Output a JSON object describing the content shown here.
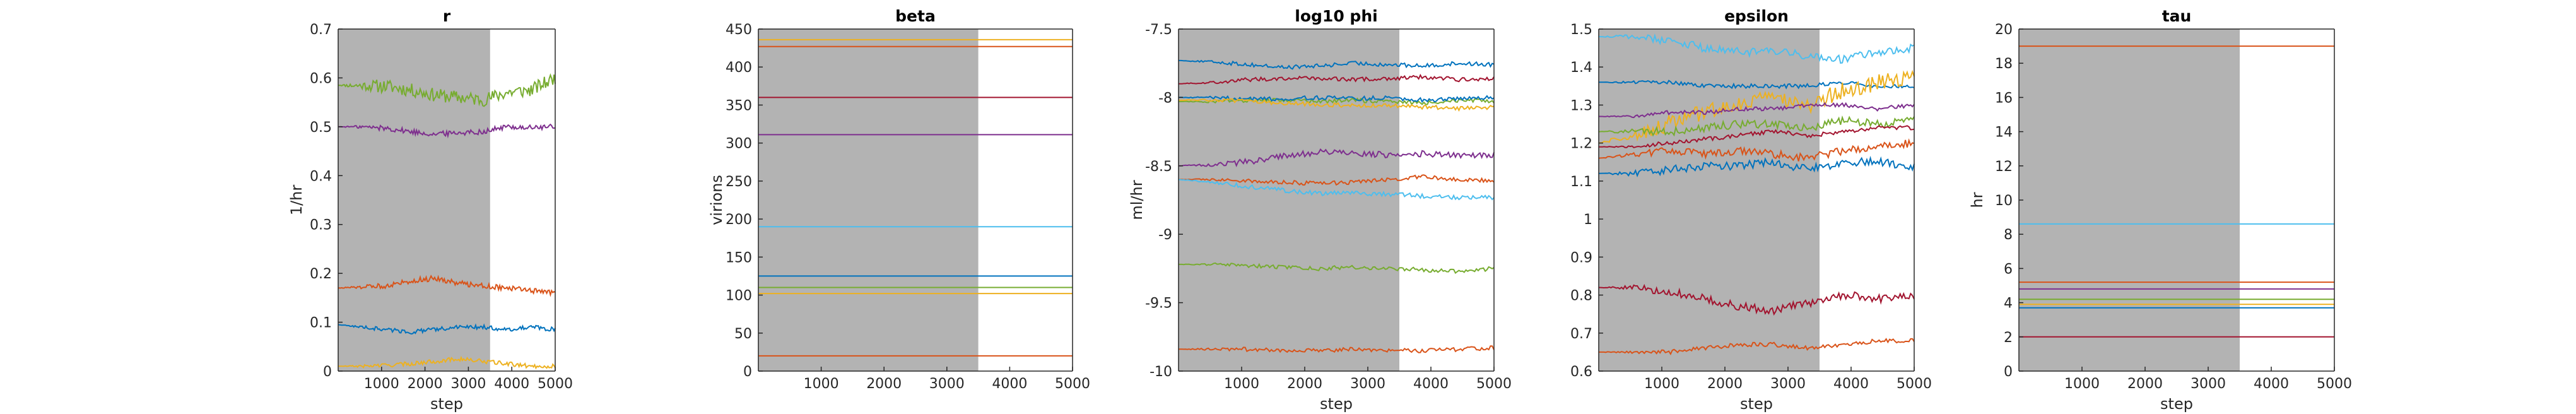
{
  "figure": {
    "background": "#ffffff",
    "shade_color": "#b3b3b3",
    "axis_color": "#262626"
  },
  "chart_data": [
    {
      "type": "line",
      "title": "r",
      "xlabel": "step",
      "ylabel": "1/hr",
      "xlim": [
        0,
        5000
      ],
      "ylim": [
        0,
        0.7
      ],
      "shaded_until": 3500,
      "xticks": [
        1000,
        2000,
        3000,
        4000,
        5000
      ],
      "xtick_labels": [
        "1000",
        "2000",
        "3000",
        "4000",
        "5000"
      ],
      "yticks": [
        0,
        0.1,
        0.2,
        0.3,
        0.4,
        0.5,
        0.6,
        0.7
      ],
      "ytick_labels": [
        "0",
        "0.1",
        "0.2",
        "0.3",
        "0.4",
        "0.5",
        "0.6",
        "0.7"
      ],
      "series": [
        {
          "color": "#77ac30",
          "values": [
            0.585,
            0.584,
            0.583,
            0.575,
            0.565,
            0.56,
            0.555,
            0.57,
            0.575,
            0.6
          ]
        },
        {
          "color": "#7e2f8e",
          "values": [
            0.5,
            0.5,
            0.497,
            0.49,
            0.485,
            0.488,
            0.49,
            0.5,
            0.498,
            0.5
          ]
        },
        {
          "color": "#d95319",
          "values": [
            0.17,
            0.172,
            0.175,
            0.185,
            0.19,
            0.18,
            0.175,
            0.17,
            0.165,
            0.16
          ]
        },
        {
          "color": "#0072bd",
          "values": [
            0.095,
            0.09,
            0.085,
            0.08,
            0.085,
            0.09,
            0.09,
            0.085,
            0.09,
            0.085
          ]
        },
        {
          "color": "#edb120",
          "values": [
            0.01,
            0.01,
            0.012,
            0.015,
            0.02,
            0.025,
            0.02,
            0.015,
            0.01,
            0.01
          ]
        }
      ]
    },
    {
      "type": "line",
      "title": "beta",
      "xlabel": "",
      "ylabel": "virions",
      "xlim": [
        0,
        5000
      ],
      "ylim": [
        0,
        450
      ],
      "shaded_until": 3500,
      "xticks": [
        1000,
        2000,
        3000,
        4000,
        5000
      ],
      "xtick_labels": [
        "1000",
        "2000",
        "3000",
        "4000",
        "5000"
      ],
      "yticks": [
        0,
        50,
        100,
        150,
        200,
        250,
        300,
        350,
        400,
        450
      ],
      "ytick_labels": [
        "0",
        "50",
        "100",
        "150",
        "200",
        "250",
        "300",
        "350",
        "400",
        "450"
      ],
      "series": [
        {
          "color": "#edb120",
          "values": [
            436,
            436,
            436,
            436,
            436,
            436,
            436,
            436,
            436,
            436
          ]
        },
        {
          "color": "#d95319",
          "values": [
            427,
            427,
            427,
            427,
            427,
            427,
            427,
            427,
            427,
            427
          ]
        },
        {
          "color": "#a2142f",
          "values": [
            360,
            360,
            360,
            360,
            360,
            360,
            360,
            360,
            360,
            360
          ]
        },
        {
          "color": "#7e2f8e",
          "values": [
            311,
            311,
            311,
            311,
            311,
            311,
            311,
            311,
            311,
            311
          ]
        },
        {
          "color": "#4dbeee",
          "values": [
            190,
            190,
            190,
            190,
            190,
            190,
            190,
            190,
            190,
            190
          ]
        },
        {
          "color": "#0072bd",
          "values": [
            125,
            125,
            125,
            125,
            125,
            125,
            125,
            125,
            125,
            125
          ]
        },
        {
          "color": "#77ac30",
          "values": [
            110,
            110,
            110,
            110,
            110,
            110,
            110,
            110,
            110,
            110
          ]
        },
        {
          "color": "#edb120",
          "values": [
            102,
            102,
            102,
            102,
            102,
            102,
            102,
            102,
            102,
            102
          ]
        },
        {
          "color": "#d95319",
          "values": [
            20,
            20,
            20,
            20,
            20,
            20,
            20,
            20,
            20,
            20
          ]
        }
      ]
    },
    {
      "type": "line",
      "title": "log10 phi",
      "xlabel": "step",
      "ylabel": "ml/hr",
      "xlim": [
        0,
        5000
      ],
      "ylim": [
        -10,
        -7.5
      ],
      "shaded_until": 3500,
      "xticks": [
        1000,
        2000,
        3000,
        4000,
        5000
      ],
      "xtick_labels": [
        "1000",
        "2000",
        "3000",
        "4000",
        "5000"
      ],
      "yticks": [
        -10,
        -9.5,
        -9,
        -8.5,
        -8,
        -7.5
      ],
      "ytick_labels": [
        "-10",
        "-9.5",
        "-9",
        "-8.5",
        "-8",
        "-7.5"
      ],
      "series": [
        {
          "color": "#0072bd",
          "values": [
            -7.73,
            -7.74,
            -7.76,
            -7.78,
            -7.77,
            -7.75,
            -7.76,
            -7.77,
            -7.75,
            -7.76
          ]
        },
        {
          "color": "#a2142f",
          "values": [
            -7.9,
            -7.89,
            -7.87,
            -7.86,
            -7.86,
            -7.87,
            -7.86,
            -7.85,
            -7.87,
            -7.86
          ]
        },
        {
          "color": "#77ac30",
          "values": [
            -8.03,
            -8.03,
            -8.02,
            -8.02,
            -8.03,
            -8.02,
            -8.03,
            -8.04,
            -8.02,
            -8.03
          ]
        },
        {
          "color": "#0072bd",
          "values": [
            -8.0,
            -8.0,
            -8.01,
            -8.01,
            -8.0,
            -8.01,
            -8.0,
            -8.02,
            -8.01,
            -8.0
          ]
        },
        {
          "color": "#edb120",
          "values": [
            -8.02,
            -8.02,
            -8.03,
            -8.04,
            -8.05,
            -8.06,
            -8.06,
            -8.07,
            -8.08,
            -8.07
          ]
        },
        {
          "color": "#7e2f8e",
          "values": [
            -8.5,
            -8.49,
            -8.47,
            -8.43,
            -8.4,
            -8.41,
            -8.42,
            -8.41,
            -8.42,
            -8.42
          ]
        },
        {
          "color": "#d95319",
          "values": [
            -8.6,
            -8.6,
            -8.61,
            -8.62,
            -8.63,
            -8.62,
            -8.6,
            -8.58,
            -8.6,
            -8.61
          ]
        },
        {
          "color": "#4dbeee",
          "values": [
            -8.6,
            -8.62,
            -8.65,
            -8.68,
            -8.7,
            -8.7,
            -8.71,
            -8.72,
            -8.73,
            -8.73
          ]
        },
        {
          "color": "#77ac30",
          "values": [
            -9.22,
            -9.22,
            -9.23,
            -9.24,
            -9.25,
            -9.24,
            -9.25,
            -9.26,
            -9.27,
            -9.25
          ]
        },
        {
          "color": "#d95319",
          "values": [
            -9.84,
            -9.84,
            -9.84,
            -9.85,
            -9.85,
            -9.84,
            -9.85,
            -9.85,
            -9.84,
            -9.83
          ]
        }
      ]
    },
    {
      "type": "line",
      "title": "epsilon",
      "xlabel": "step",
      "ylabel": "",
      "xlim": [
        0,
        5000
      ],
      "ylim": [
        0.6,
        1.5
      ],
      "shaded_until": 3500,
      "xticks": [
        1000,
        2000,
        3000,
        4000,
        5000
      ],
      "xtick_labels": [
        "1000",
        "2000",
        "3000",
        "4000",
        "5000"
      ],
      "yticks": [
        0.6,
        0.7,
        0.8,
        0.9,
        1,
        1.1,
        1.2,
        1.3,
        1.4,
        1.5
      ],
      "ytick_labels": [
        "0.6",
        "0.7",
        "0.8",
        "0.9",
        "1",
        "1.1",
        "1.2",
        "1.3",
        "1.4",
        "1.5"
      ],
      "series": [
        {
          "color": "#4dbeee",
          "values": [
            1.48,
            1.48,
            1.47,
            1.45,
            1.44,
            1.44,
            1.43,
            1.42,
            1.44,
            1.45
          ]
        },
        {
          "color": "#0072bd",
          "values": [
            1.36,
            1.36,
            1.36,
            1.35,
            1.35,
            1.35,
            1.35,
            1.36,
            1.35,
            1.35
          ]
        },
        {
          "color": "#edb120",
          "values": [
            1.2,
            1.22,
            1.25,
            1.28,
            1.3,
            1.32,
            1.3,
            1.34,
            1.36,
            1.38
          ]
        },
        {
          "color": "#7e2f8e",
          "values": [
            1.27,
            1.27,
            1.28,
            1.28,
            1.29,
            1.29,
            1.3,
            1.3,
            1.29,
            1.3
          ]
        },
        {
          "color": "#77ac30",
          "values": [
            1.23,
            1.23,
            1.23,
            1.24,
            1.25,
            1.25,
            1.24,
            1.26,
            1.25,
            1.26
          ]
        },
        {
          "color": "#a2142f",
          "values": [
            1.19,
            1.19,
            1.2,
            1.21,
            1.22,
            1.23,
            1.22,
            1.23,
            1.24,
            1.24
          ]
        },
        {
          "color": "#d95319",
          "values": [
            1.16,
            1.17,
            1.18,
            1.17,
            1.18,
            1.17,
            1.16,
            1.18,
            1.19,
            1.2
          ]
        },
        {
          "color": "#0072bd",
          "values": [
            1.12,
            1.12,
            1.13,
            1.14,
            1.14,
            1.15,
            1.13,
            1.15,
            1.15,
            1.14
          ]
        },
        {
          "color": "#a2142f",
          "values": [
            0.82,
            0.82,
            0.81,
            0.79,
            0.77,
            0.76,
            0.78,
            0.8,
            0.79,
            0.8
          ]
        },
        {
          "color": "#d95319",
          "values": [
            0.65,
            0.65,
            0.65,
            0.66,
            0.67,
            0.67,
            0.66,
            0.67,
            0.68,
            0.68
          ]
        }
      ]
    },
    {
      "type": "line",
      "title": "tau",
      "xlabel": "step",
      "ylabel": "hr",
      "xlim": [
        0,
        5000
      ],
      "ylim": [
        0,
        20
      ],
      "shaded_until": 3500,
      "xticks": [
        1000,
        2000,
        3000,
        4000,
        5000
      ],
      "xtick_labels": [
        "1000",
        "2000",
        "3000",
        "4000",
        "5000"
      ],
      "yticks": [
        0,
        2,
        4,
        6,
        8,
        10,
        12,
        14,
        16,
        18,
        20
      ],
      "ytick_labels": [
        "0",
        "2",
        "4",
        "6",
        "8",
        "10",
        "12",
        "14",
        "16",
        "18",
        "20"
      ],
      "series": [
        {
          "color": "#d95319",
          "values": [
            19,
            19,
            19,
            19,
            19,
            19,
            19,
            19,
            19,
            19
          ]
        },
        {
          "color": "#4dbeee",
          "values": [
            8.6,
            8.6,
            8.6,
            8.6,
            8.6,
            8.6,
            8.6,
            8.6,
            8.6,
            8.6
          ]
        },
        {
          "color": "#d95319",
          "values": [
            5.2,
            5.2,
            5.2,
            5.2,
            5.2,
            5.2,
            5.2,
            5.2,
            5.2,
            5.2
          ]
        },
        {
          "color": "#7e2f8e",
          "values": [
            4.8,
            4.8,
            4.8,
            4.8,
            4.8,
            4.8,
            4.8,
            4.8,
            4.8,
            4.8
          ]
        },
        {
          "color": "#77ac30",
          "values": [
            4.2,
            4.2,
            4.2,
            4.2,
            4.2,
            4.2,
            4.2,
            4.2,
            4.2,
            4.2
          ]
        },
        {
          "color": "#edb120",
          "values": [
            3.9,
            3.9,
            3.9,
            3.9,
            3.9,
            3.9,
            3.9,
            3.9,
            3.9,
            3.9
          ]
        },
        {
          "color": "#0072bd",
          "values": [
            3.7,
            3.7,
            3.7,
            3.7,
            3.7,
            3.7,
            3.7,
            3.7,
            3.7,
            3.7
          ]
        },
        {
          "color": "#a2142f",
          "values": [
            2.0,
            2.0,
            2.0,
            2.0,
            2.0,
            2.0,
            2.0,
            2.0,
            2.0,
            2.0
          ]
        }
      ]
    }
  ]
}
